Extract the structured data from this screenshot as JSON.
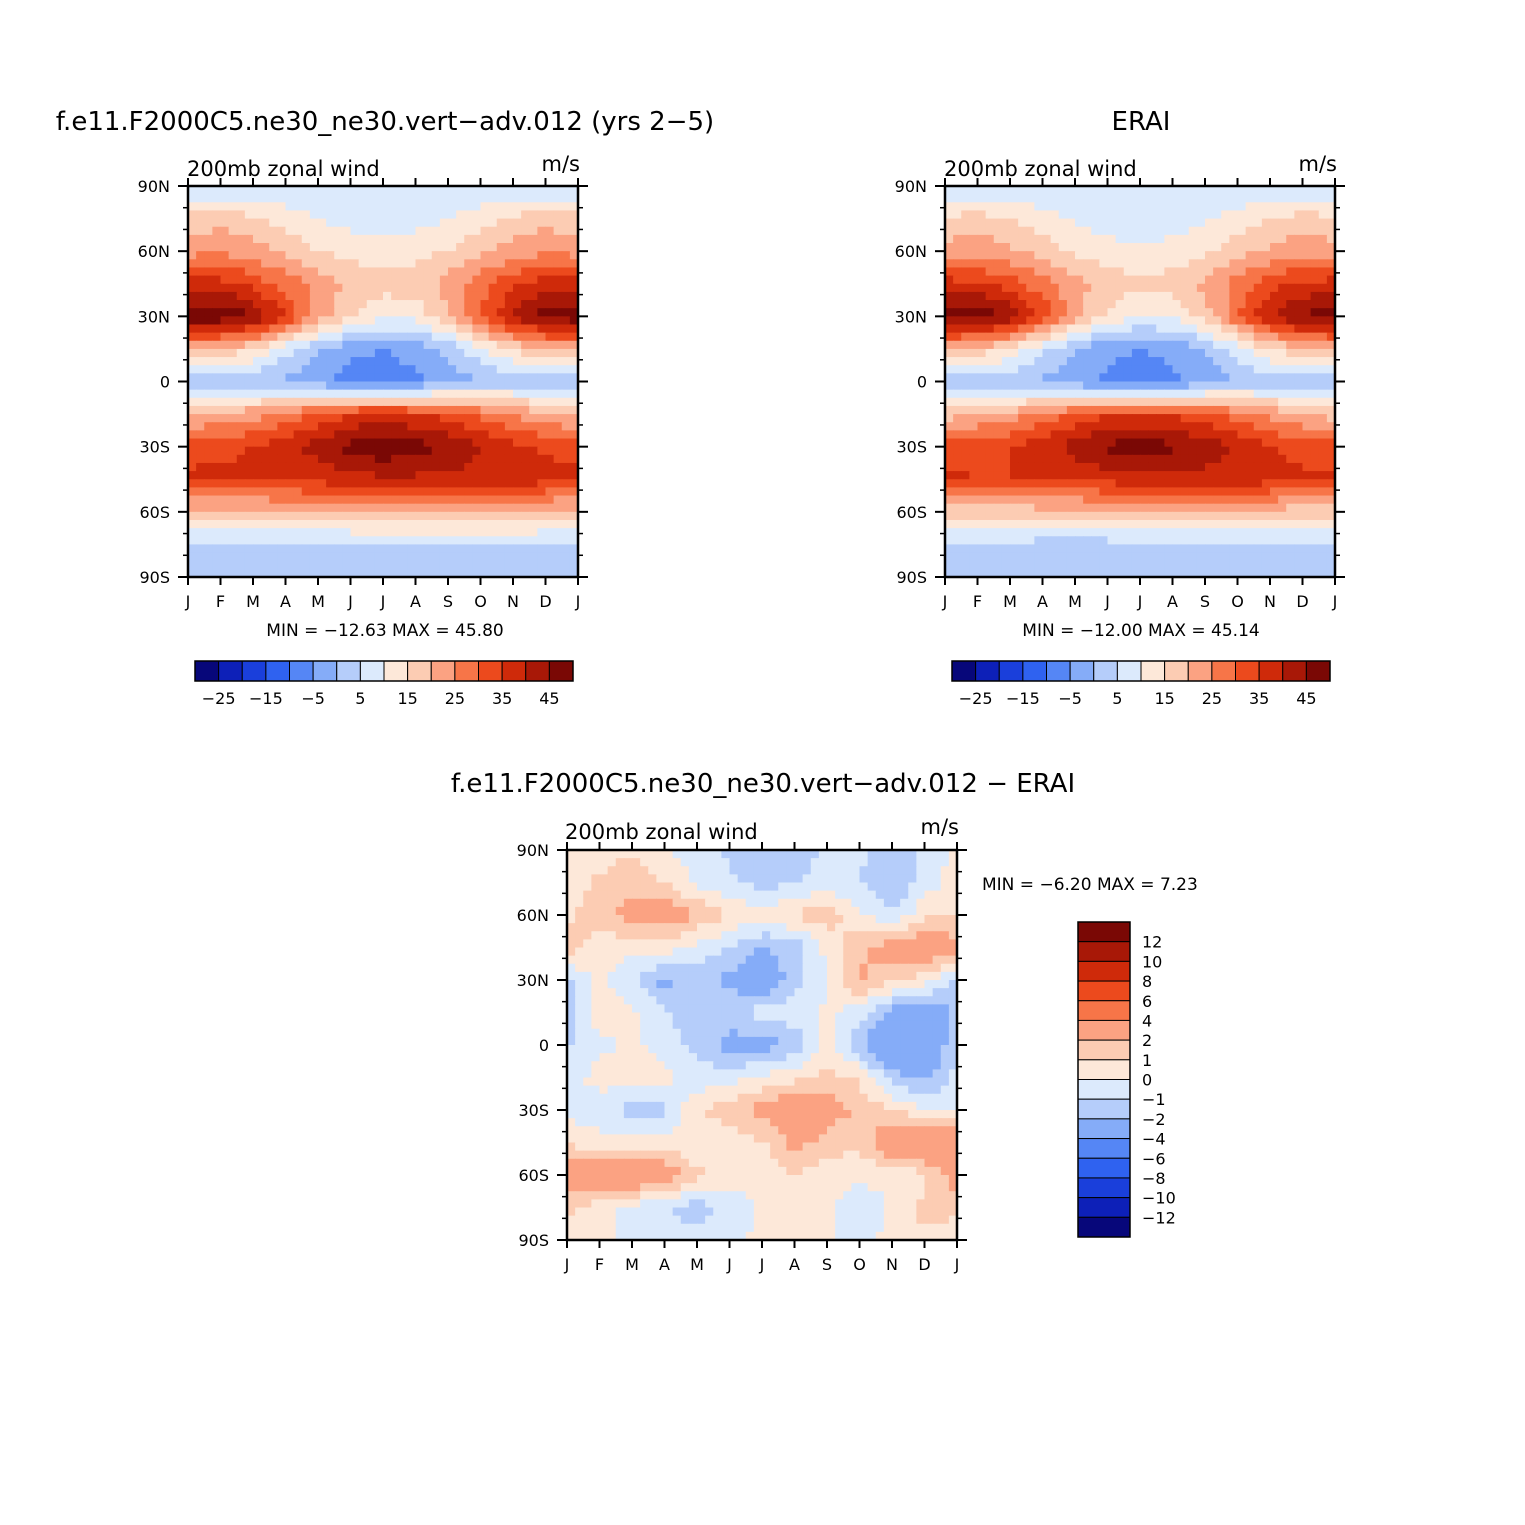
{
  "panels": [
    {
      "title": "f.e11.F2000C5.ne30_ne30.vert−adv.012 (yrs 2−5)",
      "left_label": "200mb zonal wind",
      "right_label": "m/s",
      "stats": "MIN = −12.63  MAX =   45.80"
    },
    {
      "title": "ERAI",
      "left_label": "200mb zonal wind",
      "right_label": "m/s",
      "stats": "MIN = −12.00  MAX =   45.14"
    },
    {
      "title": "f.e11.F2000C5.ne30_ne30.vert−adv.012 − ERAI",
      "left_label": "200mb zonal wind",
      "right_label": "m/s",
      "stats": "MIN =    −6.20  MAX =     7.23"
    }
  ],
  "colors": {
    "abs_levels": [
      "#07077a",
      "#0d20b8",
      "#1a3fdb",
      "#2f62f0",
      "#5586f5",
      "#85acf8",
      "#b5cdfa",
      "#dceafc",
      "#fde8d9",
      "#fcccb3",
      "#fba282",
      "#f77548",
      "#ec4a1d",
      "#cf2a0a",
      "#a81807",
      "#7a0805"
    ],
    "diff_levels": [
      "#07077a",
      "#0d20b8",
      "#1a3fdb",
      "#2f62f0",
      "#5586f5",
      "#85acf8",
      "#b5cdfa",
      "#dceafc",
      "#fde8d9",
      "#fcccb3",
      "#fba282",
      "#f77548",
      "#ec4a1d",
      "#cf2a0a",
      "#a81807",
      "#7a0805"
    ]
  },
  "chart_data": [
    {
      "type": "heatmap",
      "title": "f.e11.F2000C5.ne30_ne30.vert−adv.012 (yrs 2−5)",
      "variable": "200mb zonal wind",
      "units": "m/s",
      "x_ticks": [
        "J",
        "F",
        "M",
        "A",
        "M",
        "J",
        "J",
        "A",
        "S",
        "O",
        "N",
        "D",
        "J"
      ],
      "y_ticks": [
        "90N",
        "60N",
        "30N",
        "0",
        "30S",
        "60S",
        "90S"
      ],
      "months": [
        "J",
        "F",
        "M",
        "A",
        "M",
        "J",
        "J",
        "A",
        "S",
        "O",
        "N",
        "D",
        "J"
      ],
      "lat": [
        90,
        75,
        60,
        45,
        30,
        15,
        0,
        -15,
        -30,
        -45,
        -60,
        -75,
        -90
      ],
      "values": [
        [
          0,
          0,
          0,
          0,
          0,
          0,
          0,
          0,
          0,
          0,
          0,
          0,
          0
        ],
        [
          12,
          13,
          11,
          8,
          5,
          3,
          2,
          3,
          5,
          8,
          11,
          13,
          12
        ],
        [
          18,
          19,
          17,
          14,
          10,
          8,
          7,
          8,
          10,
          14,
          17,
          19,
          18
        ],
        [
          33,
          32,
          28,
          23,
          18,
          14,
          12,
          13,
          17,
          23,
          29,
          32,
          33
        ],
        [
          44,
          44,
          40,
          30,
          18,
          10,
          6,
          7,
          14,
          25,
          36,
          42,
          44
        ],
        [
          16,
          14,
          10,
          2,
          -4,
          -9,
          -10,
          -8,
          -4,
          4,
          11,
          15,
          16
        ],
        [
          -3,
          -3,
          -4,
          -6,
          -9,
          -12,
          -12,
          -11,
          -8,
          -5,
          -4,
          -3,
          -3
        ],
        [
          14,
          16,
          18,
          22,
          26,
          30,
          31,
          30,
          28,
          24,
          20,
          16,
          14
        ],
        [
          28,
          29,
          30,
          33,
          37,
          42,
          44,
          42,
          39,
          35,
          31,
          29,
          28
        ],
        [
          31,
          31,
          31,
          31,
          32,
          33,
          34,
          34,
          34,
          34,
          33,
          32,
          31
        ],
        [
          13,
          13,
          13,
          14,
          14,
          15,
          15,
          15,
          15,
          15,
          14,
          13,
          13
        ],
        [
          0,
          0,
          -1,
          -1,
          -1,
          -1,
          -1,
          -1,
          -1,
          -1,
          0,
          0,
          0
        ],
        [
          -2,
          -2,
          -2,
          -2,
          -3,
          -3,
          -3,
          -3,
          -3,
          -2,
          -2,
          -2,
          -2
        ]
      ],
      "colorbar_labels": [
        "−25",
        "−15",
        "−5",
        "5",
        "15",
        "25",
        "35",
        "45"
      ],
      "levels": [
        -30,
        -25,
        -20,
        -15,
        -10,
        -5,
        0,
        5,
        10,
        15,
        20,
        25,
        30,
        35,
        40,
        45
      ]
    },
    {
      "type": "heatmap",
      "title": "ERAI",
      "variable": "200mb zonal wind",
      "units": "m/s",
      "x_ticks": [
        "J",
        "F",
        "M",
        "A",
        "M",
        "J",
        "J",
        "A",
        "S",
        "O",
        "N",
        "D",
        "J"
      ],
      "y_ticks": [
        "90N",
        "60N",
        "30N",
        "0",
        "30S",
        "60S",
        "90S"
      ],
      "months": [
        "J",
        "F",
        "M",
        "A",
        "M",
        "J",
        "J",
        "A",
        "S",
        "O",
        "N",
        "D",
        "J"
      ],
      "lat": [
        90,
        75,
        60,
        45,
        30,
        15,
        0,
        -15,
        -30,
        -45,
        -60,
        -75,
        -90
      ],
      "values": [
        [
          0,
          0,
          0,
          0,
          0,
          0,
          0,
          0,
          0,
          0,
          0,
          0,
          0
        ],
        [
          11,
          12,
          10,
          7,
          4,
          2,
          1,
          2,
          4,
          7,
          10,
          12,
          11
        ],
        [
          17,
          18,
          16,
          13,
          9,
          7,
          6,
          7,
          9,
          13,
          16,
          18,
          17
        ],
        [
          32,
          31,
          27,
          22,
          17,
          13,
          11,
          12,
          16,
          22,
          28,
          31,
          32
        ],
        [
          43,
          43,
          39,
          29,
          17,
          9,
          5,
          6,
          13,
          24,
          35,
          41,
          43
        ],
        [
          15,
          13,
          9,
          1,
          -5,
          -9,
          -10,
          -9,
          -5,
          3,
          10,
          14,
          15
        ],
        [
          -3,
          -3,
          -4,
          -6,
          -9,
          -11,
          -12,
          -11,
          -8,
          -5,
          -4,
          -3,
          -3
        ],
        [
          13,
          15,
          17,
          21,
          25,
          29,
          30,
          29,
          27,
          23,
          19,
          15,
          13
        ],
        [
          27,
          28,
          30,
          33,
          37,
          41,
          43,
          41,
          38,
          34,
          30,
          28,
          27
        ],
        [
          31,
          30,
          30,
          30,
          31,
          32,
          33,
          33,
          33,
          33,
          32,
          31,
          31
        ],
        [
          12,
          12,
          12,
          13,
          13,
          14,
          14,
          14,
          14,
          14,
          13,
          12,
          12
        ],
        [
          -1,
          -1,
          -1,
          -2,
          -2,
          -2,
          -2,
          -2,
          -2,
          -2,
          -1,
          -1,
          -1
        ],
        [
          -3,
          -3,
          -3,
          -3,
          -3,
          -3,
          -3,
          -3,
          -3,
          -3,
          -3,
          -3,
          -3
        ]
      ],
      "colorbar_labels": [
        "−25",
        "−15",
        "−5",
        "5",
        "15",
        "25",
        "35",
        "45"
      ],
      "levels": [
        -30,
        -25,
        -20,
        -15,
        -10,
        -5,
        0,
        5,
        10,
        15,
        20,
        25,
        30,
        35,
        40,
        45
      ]
    },
    {
      "type": "heatmap",
      "title": "f.e11.F2000C5.ne30_ne30.vert−adv.012 − ERAI",
      "variable": "200mb zonal wind",
      "units": "m/s",
      "x_ticks": [
        "J",
        "F",
        "M",
        "A",
        "M",
        "J",
        "J",
        "A",
        "S",
        "O",
        "N",
        "D",
        "J"
      ],
      "y_ticks": [
        "90N",
        "60N",
        "30N",
        "0",
        "30S",
        "60S",
        "90S"
      ],
      "months": [
        "J",
        "F",
        "M",
        "A",
        "M",
        "J",
        "J",
        "A",
        "S",
        "O",
        "N",
        "D",
        "J"
      ],
      "lat": [
        90,
        75,
        60,
        45,
        30,
        15,
        0,
        -15,
        -30,
        -45,
        -60,
        -75,
        -90
      ],
      "values": [
        [
          0.3,
          0.5,
          0.8,
          0.2,
          -0.6,
          -1.2,
          -1.5,
          -1.3,
          -1.0,
          -0.8,
          -1.6,
          -0.7,
          0.3
        ],
        [
          0.4,
          1.2,
          1.8,
          1.0,
          -0.3,
          -0.8,
          -1.4,
          -1.1,
          -0.6,
          -0.9,
          -2.2,
          -0.5,
          0.4
        ],
        [
          0.8,
          1.5,
          2.4,
          2.8,
          2.0,
          0.9,
          0.4,
          1.2,
          1.6,
          0.2,
          -0.9,
          0.8,
          0.8
        ],
        [
          1.4,
          0.6,
          0.3,
          0.5,
          -0.4,
          -1.0,
          -2.0,
          -1.6,
          0.3,
          1.8,
          2.6,
          3.2,
          2.6
        ],
        [
          -1.2,
          0.4,
          -0.9,
          -2.4,
          -1.6,
          -2.3,
          -3.2,
          -1.5,
          -0.2,
          2.3,
          1.2,
          0.5,
          -1.2
        ],
        [
          -1.8,
          0.8,
          0.2,
          -0.7,
          -1.8,
          -1.4,
          -0.6,
          -0.4,
          0.3,
          -0.6,
          -2.4,
          -3.3,
          -1.8
        ],
        [
          -1.1,
          -0.4,
          0.3,
          -0.6,
          -1.2,
          -2.4,
          -2.6,
          -1.8,
          0.4,
          -1.6,
          -4.2,
          -3.6,
          -1.1
        ],
        [
          -0.6,
          0.5,
          0.8,
          0.4,
          -0.6,
          -0.4,
          0.3,
          0.7,
          1.4,
          0.8,
          -1.5,
          -2.4,
          -0.6
        ],
        [
          -0.2,
          -0.8,
          -1.4,
          -1.2,
          0.8,
          1.6,
          2.4,
          3.2,
          2.6,
          1.8,
          0.9,
          0.2,
          -0.2
        ],
        [
          0.8,
          0.4,
          0.5,
          0.4,
          0.2,
          0.5,
          0.9,
          2.4,
          1.6,
          1.2,
          3.4,
          3.8,
          3.6
        ],
        [
          2.8,
          3.4,
          3.9,
          2.9,
          1.2,
          0.6,
          0.3,
          1.0,
          0.4,
          0.4,
          0.2,
          0.7,
          2.8
        ],
        [
          1.2,
          0.4,
          -0.5,
          -0.8,
          -1.6,
          -0.7,
          0.3,
          0.6,
          0.3,
          -0.9,
          0.2,
          1.3,
          1.2
        ],
        [
          0.6,
          0.2,
          -0.3,
          -0.7,
          -0.5,
          -0.3,
          0.2,
          0.4,
          0.3,
          -0.5,
          0.4,
          0.8,
          0.6
        ]
      ],
      "colorbar_labels": [
        "12",
        "10",
        "8",
        "6",
        "4",
        "2",
        "1",
        "0",
        "−1",
        "−2",
        "−4",
        "−6",
        "−8",
        "−10",
        "−12"
      ],
      "levels": [
        -12,
        -10,
        -8,
        -6,
        -4,
        -2,
        -1,
        0,
        1,
        2,
        4,
        6,
        8,
        10,
        12
      ]
    }
  ]
}
